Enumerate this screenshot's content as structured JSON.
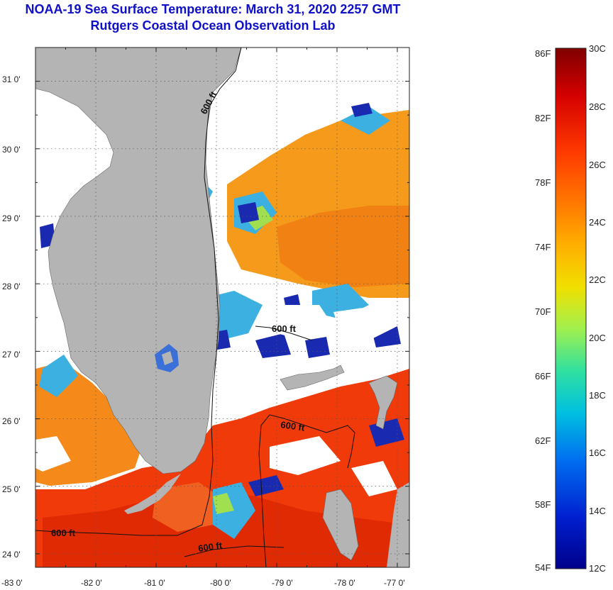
{
  "header": {
    "title": "NOAA-19 Sea Surface Temperature:  March 31, 2020 2257 GMT",
    "subtitle": "Rutgers Coastal Ocean Observation Lab"
  },
  "map": {
    "lon_range": [
      -83.0,
      -76.8
    ],
    "lat_range": [
      23.8,
      31.5
    ],
    "x_ticks": [
      "-83 0'",
      "-82 0'",
      "-81 0'",
      "-80 0'",
      "-79 0'",
      "-78 0'",
      "-77 0'"
    ],
    "y_ticks": [
      "24 0'",
      "25 0'",
      "26 0'",
      "27 0'",
      "28 0'",
      "29 0'",
      "30 0'",
      "31 0'"
    ],
    "contour_label": "600 ft",
    "colors": {
      "land": "#b4b4b4",
      "warm_water": "#f03a0a",
      "mid_water": "#f59a1a",
      "cool_water": "#3cb0e0",
      "cold_water": "#1a2ab0",
      "no_data": "#ffffff"
    }
  },
  "colorbar": {
    "fahrenheit_labels": [
      "86F",
      "82F",
      "78F",
      "74F",
      "70F",
      "66F",
      "62F",
      "58F",
      "54F"
    ],
    "celsius_labels": [
      "30C",
      "28C",
      "26C",
      "24C",
      "22C",
      "20C",
      "18C",
      "16C",
      "14C",
      "12C"
    ],
    "range_c": [
      12,
      30
    ],
    "range_f": [
      54,
      86
    ],
    "gradient": [
      "#800000",
      "#d40000",
      "#ff3a00",
      "#ff7a00",
      "#ffb000",
      "#f0e000",
      "#a0f050",
      "#30e0a0",
      "#00c0e0",
      "#0070f0",
      "#0020d0",
      "#00008a"
    ]
  }
}
